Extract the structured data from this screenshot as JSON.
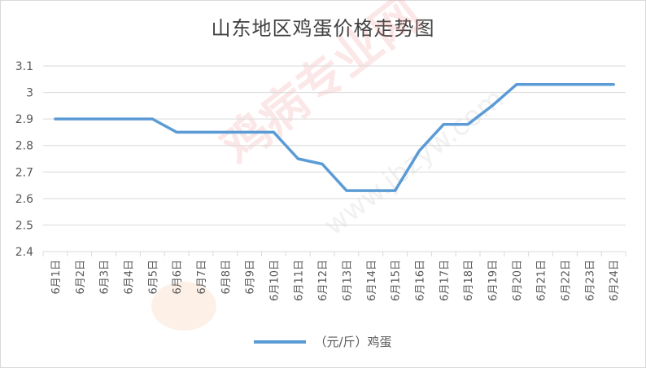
{
  "chart_data": {
    "type": "line",
    "title": "山东地区鸡蛋价格走势图",
    "categories": [
      "6月1日",
      "6月2日",
      "6月3日",
      "6月4日",
      "6月5日",
      "6月6日",
      "6月7日",
      "6月8日",
      "6月9日",
      "6月10日",
      "6月11日",
      "6月12日",
      "6月13日",
      "6月14日",
      "6月15日",
      "6月16日",
      "6月17日",
      "6月18日",
      "6月19日",
      "6月20日",
      "6月21日",
      "6月22日",
      "6月23日",
      "6月24日"
    ],
    "series": [
      {
        "name": "（元/斤）鸡蛋",
        "color": "#5b9bd5",
        "values": [
          2.9,
          2.9,
          2.9,
          2.9,
          2.9,
          2.85,
          2.85,
          2.85,
          2.85,
          2.85,
          2.75,
          2.73,
          2.63,
          2.63,
          2.63,
          2.78,
          2.88,
          2.88,
          2.95,
          3.03,
          3.03,
          3.03,
          3.03,
          3.03
        ]
      }
    ],
    "yticks": [
      "2.4",
      "2.5",
      "2.6",
      "2.7",
      "2.8",
      "2.9",
      "3",
      "3.1"
    ],
    "ylim": [
      2.4,
      3.1
    ],
    "grid": true,
    "legend_position": "bottom"
  },
  "watermark": {
    "main": "鸡病专业网",
    "url": "www.jbzyw.com"
  }
}
